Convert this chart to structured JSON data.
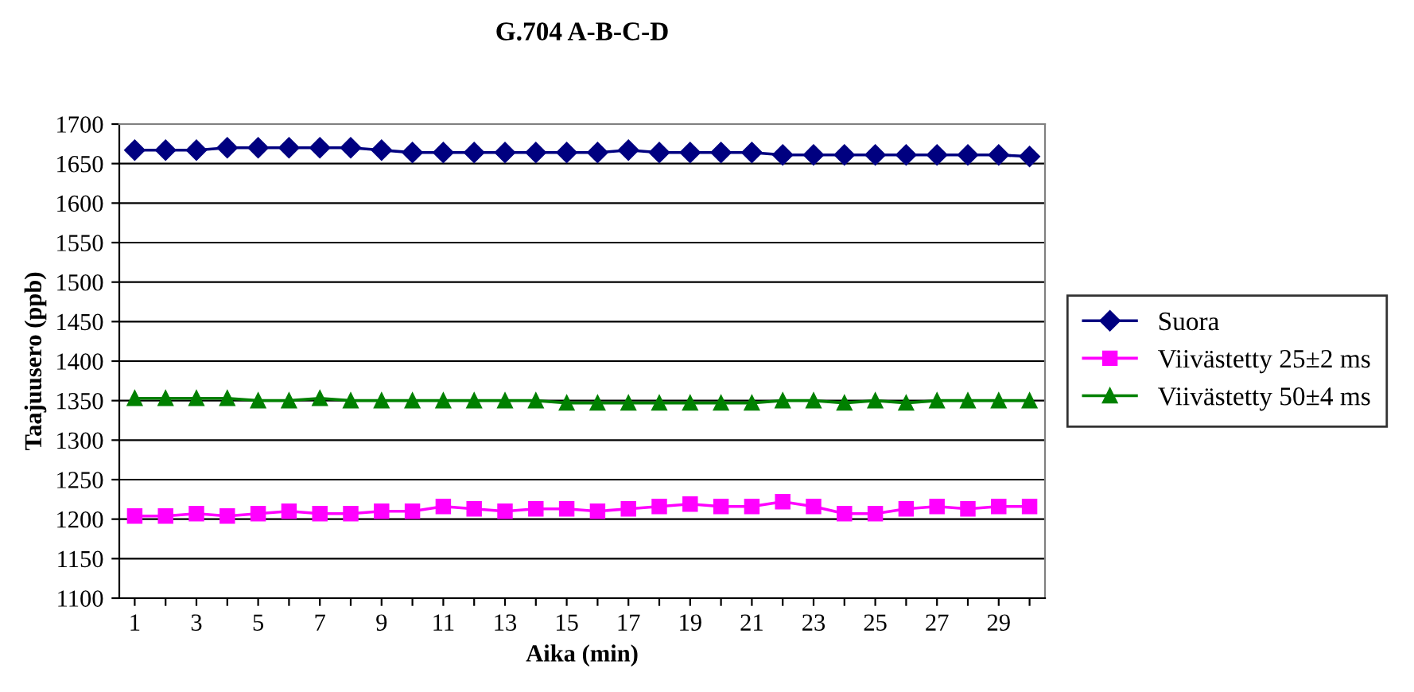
{
  "chart_data": {
    "type": "line",
    "title": "G.704 A-B-C-D",
    "xlabel": "Aika (min)",
    "ylabel": "Taajuusero (ppb)",
    "categories": [
      "1",
      null,
      "3",
      null,
      "5",
      null,
      "7",
      null,
      "9",
      null,
      "11",
      null,
      "13",
      null,
      "15",
      null,
      "17",
      null,
      "19",
      null,
      "21",
      null,
      "23",
      null,
      "25",
      null,
      "27",
      null,
      "29",
      null
    ],
    "series": [
      {
        "name": "Suora",
        "color": "#000080",
        "marker": "diamond",
        "values": [
          1667,
          1667,
          1667,
          1670,
          1670,
          1670,
          1670,
          1670,
          1667,
          1664,
          1664,
          1664,
          1664,
          1664,
          1664,
          1664,
          1667,
          1664,
          1664,
          1664,
          1664,
          1661,
          1661,
          1661,
          1661,
          1661,
          1661,
          1661,
          1661,
          1659
        ]
      },
      {
        "name": "Viivästetty 25±2 ms",
        "color": "#ff00ff",
        "marker": "square",
        "values": [
          1204,
          1204,
          1207,
          1204,
          1207,
          1210,
          1207,
          1207,
          1210,
          1210,
          1216,
          1213,
          1210,
          1213,
          1213,
          1210,
          1213,
          1216,
          1219,
          1216,
          1216,
          1222,
          1216,
          1207,
          1207,
          1213,
          1216,
          1213,
          1216,
          1216
        ]
      },
      {
        "name": "Viivästetty 50±4 ms",
        "color": "#008000",
        "marker": "triangle",
        "values": [
          1353,
          1353,
          1353,
          1353,
          1350,
          1350,
          1353,
          1350,
          1350,
          1350,
          1350,
          1350,
          1350,
          1350,
          1347,
          1347,
          1347,
          1347,
          1347,
          1347,
          1347,
          1350,
          1350,
          1347,
          1350,
          1347,
          1350,
          1350,
          1350,
          1350
        ]
      }
    ],
    "ylim": [
      1100,
      1700
    ],
    "yticks": [
      1100,
      1150,
      1200,
      1250,
      1300,
      1350,
      1400,
      1450,
      1500,
      1550,
      1600,
      1650,
      1700
    ],
    "grid": "y",
    "legend": "right",
    "line_style": "solid"
  }
}
